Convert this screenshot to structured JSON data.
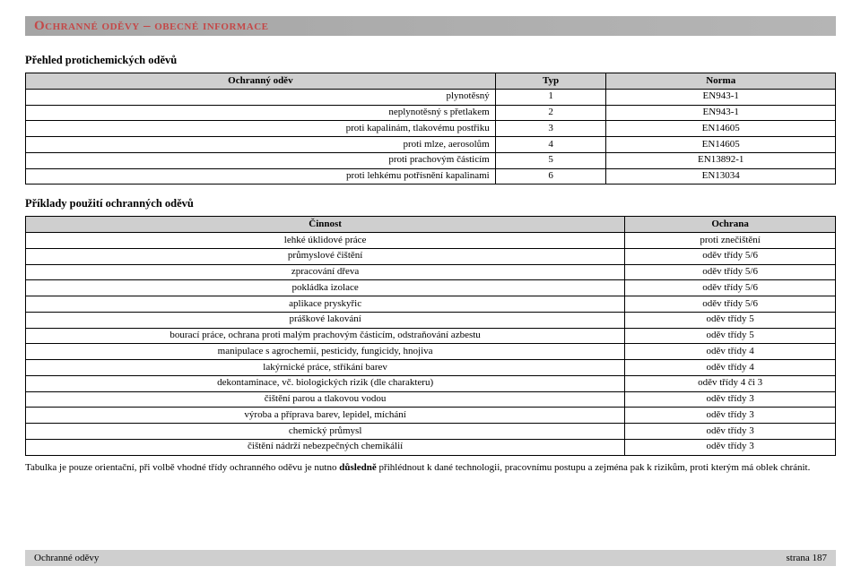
{
  "header": {
    "title": "Ochranné oděvy – obecné informace"
  },
  "section1": {
    "title": "Přehled protichemických oděvů",
    "columns": [
      "Ochranný oděv",
      "Typ",
      "Norma"
    ],
    "rows": [
      [
        "plynotěsný",
        "1",
        "EN943-1"
      ],
      [
        "neplynotěsný s přetlakem",
        "2",
        "EN943-1"
      ],
      [
        "proti kapalinám, tlakovému postřiku",
        "3",
        "EN14605"
      ],
      [
        "proti mlze, aerosolům",
        "4",
        "EN14605"
      ],
      [
        "proti prachovým částicím",
        "5",
        "EN13892-1"
      ],
      [
        "proti lehkému potřísnění kapalinami",
        "6",
        "EN13034"
      ]
    ]
  },
  "section2": {
    "title": "Příklady použití ochranných oděvů",
    "columns": [
      "Činnost",
      "Ochrana"
    ],
    "rows": [
      [
        "lehké úklidové práce",
        "proti znečištění"
      ],
      [
        "průmyslové čištění",
        "oděv třídy 5/6"
      ],
      [
        "zpracování dřeva",
        "oděv třídy 5/6"
      ],
      [
        "pokládka izolace",
        "oděv třídy 5/6"
      ],
      [
        "aplikace pryskyřic",
        "oděv třídy 5/6"
      ],
      [
        "práškové lakování",
        "oděv třídy 5"
      ],
      [
        "bourací práce, ochrana proti malým prachovým částicím, odstraňování azbestu",
        "oděv třídy 5"
      ],
      [
        "manipulace s agrochemií, pesticidy, fungicidy, hnojiva",
        "oděv třídy 4"
      ],
      [
        "lakýrnické práce, stříkání barev",
        "oděv třídy 4"
      ],
      [
        "dekontaminace, vč. biologických rizik (dle charakteru)",
        "oděv třídy 4 či 3"
      ],
      [
        "čištění parou a tlakovou vodou",
        "oděv třídy 3"
      ],
      [
        "výroba a příprava barev, lepidel, míchání",
        "oděv třídy 3"
      ],
      [
        "chemický průmysl",
        "oděv třídy 3"
      ],
      [
        "čištění nádrží nebezpečných chemikálií",
        "oděv třídy 3"
      ]
    ]
  },
  "note": "Tabulka je pouze orientační, při volbě vhodné třídy ochranného oděvu je nutno důsledně přihlédnout k dané technologii, pracovnímu postupu a zejména pak k rizikům, proti kterým má oblek chránit.",
  "footer": {
    "left": "Ochranné oděvy",
    "right": "strana 187"
  },
  "style": {
    "page_bg": "#ffffff",
    "header_bg": "#b0b0b0",
    "header_text_color": "#c44848",
    "table_header_bg": "#cfcfcf",
    "border_color": "#000000",
    "body_font": "Times New Roman",
    "body_fontsize_pt": 8,
    "title_fontsize_pt": 11
  }
}
